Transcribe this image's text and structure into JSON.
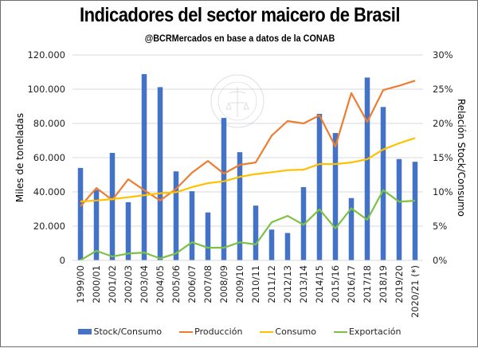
{
  "header": {
    "title": "Indicadores del sector maicero de Brasil",
    "subtitle": "@BCRMercados  en base a datos de la CONAB"
  },
  "watermark": {
    "text": "BOLSA DE COMERCIO DE ROSARIO"
  },
  "colors": {
    "stock_consumo": "#4472C4",
    "produccion": "#ED7D31",
    "consumo": "#FFC000",
    "exportacion": "#7CC242",
    "gridline": "#d9d9d9",
    "axis_text": "#222222"
  },
  "chart_data": {
    "type": "bar+line",
    "title": "Indicadores del sector maicero de Brasil",
    "subtitle": "@BCRMercados  en base a datos de la CONAB",
    "xlabel": "",
    "ylabel": "Miles de toneladas",
    "y2label": "Relación Stock/Consumo",
    "ylim": [
      0,
      120000
    ],
    "y2lim": [
      0,
      0.3
    ],
    "yticks": [
      "0",
      "20.000",
      "40.000",
      "60.000",
      "80.000",
      "100.000",
      "120.000"
    ],
    "y2ticks": [
      "0%",
      "5%",
      "10%",
      "15%",
      "20%",
      "25%",
      "30%"
    ],
    "grid": true,
    "legend_position": "bottom",
    "categories": [
      "1999/00",
      "2000/01",
      "2001/02",
      "2002/03",
      "2003/04",
      "2004/05",
      "2005/06",
      "2006/07",
      "2007/08",
      "2008/09",
      "2009/10",
      "2010/11",
      "2011/12",
      "2012/13",
      "2013/14",
      "2014/15",
      "2015/16",
      "2016/17",
      "2017/18",
      "2018/19",
      "2019/20",
      "2020/21 (*)"
    ],
    "series": [
      {
        "name": "Stock/Consumo",
        "type": "bar",
        "axis": "right",
        "unit": "percent",
        "values": [
          13.5,
          10.3,
          15.7,
          8.5,
          27.2,
          25.3,
          13.0,
          10.1,
          7.0,
          20.8,
          15.8,
          8.0,
          4.5,
          4.0,
          10.7,
          21.4,
          18.6,
          9.1,
          26.7,
          22.4,
          14.8,
          14.4
        ]
      },
      {
        "name": "Producción",
        "type": "line",
        "axis": "left",
        "unit": "miles de toneladas",
        "values": [
          31600,
          42300,
          35300,
          47400,
          41000,
          35000,
          41800,
          51200,
          58100,
          50700,
          55800,
          57200,
          72900,
          81400,
          80000,
          84700,
          66500,
          97700,
          80900,
          99500,
          102000,
          105000
        ]
      },
      {
        "name": "Consumo",
        "type": "line",
        "axis": "left",
        "unit": "miles de toneladas",
        "values": [
          34400,
          35000,
          35800,
          36900,
          38100,
          39200,
          39800,
          42800,
          45100,
          46200,
          48800,
          50400,
          51500,
          52700,
          53000,
          56300,
          56300,
          57200,
          59100,
          64800,
          68400,
          71500
        ]
      },
      {
        "name": "Exportación",
        "type": "line",
        "axis": "left",
        "unit": "miles de toneladas",
        "values": [
          100,
          5600,
          2300,
          4000,
          4600,
          1100,
          4100,
          10600,
          7400,
          7400,
          10600,
          9300,
          22300,
          26000,
          20800,
          29800,
          18700,
          30400,
          23700,
          41000,
          34300,
          34900
        ]
      }
    ]
  },
  "legend": {
    "items": [
      {
        "label": "Stock/Consumo",
        "kind": "bar"
      },
      {
        "label": "Producción",
        "kind": "line"
      },
      {
        "label": "Consumo",
        "kind": "line"
      },
      {
        "label": "Exportación",
        "kind": "line"
      }
    ]
  }
}
